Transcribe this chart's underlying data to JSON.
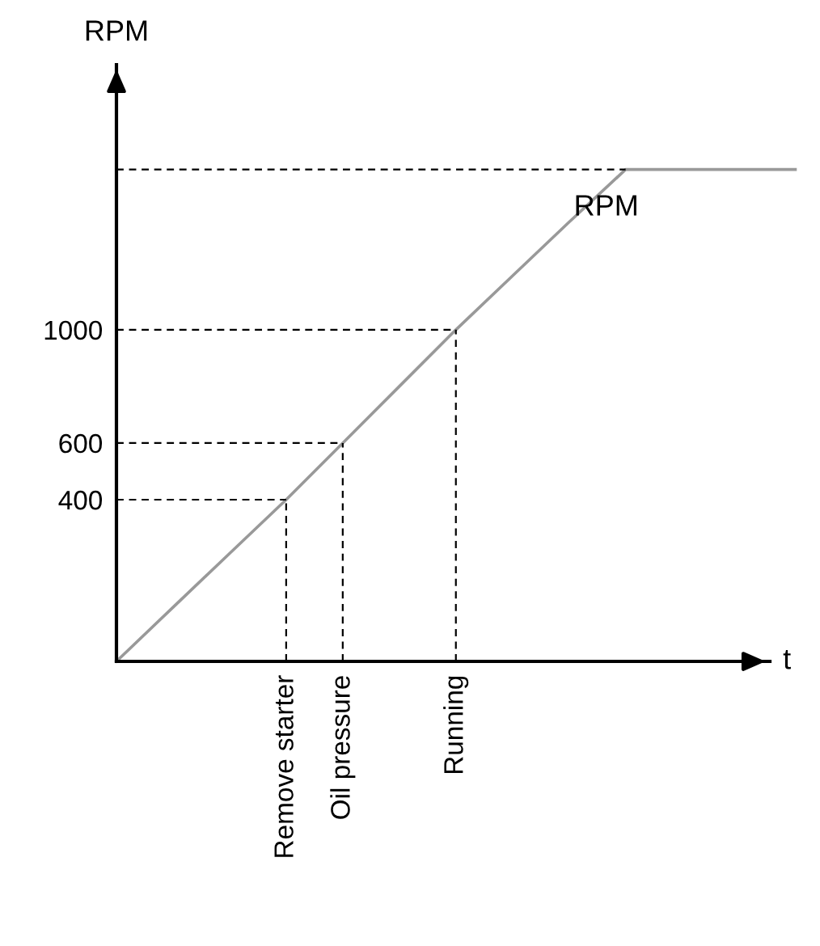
{
  "chart_data": {
    "type": "line",
    "xlabel": "t",
    "ylabel": "RPM",
    "categories": [
      null,
      null,
      null,
      "Remove starter",
      "Oil pressure",
      null,
      "Running",
      null,
      null,
      null,
      null,
      null,
      null
    ],
    "series": [
      {
        "color": "#999999",
        "values": [
          -171,
          20,
          210,
          400,
          600,
          800,
          1000,
          1190,
          1380,
          1566,
          1566,
          1566,
          1566
        ]
      }
    ],
    "ylim": [
      -171,
      1936
    ],
    "yticks": [
      400,
      600,
      1000
    ],
    "ref_lines": [
      {
        "axis": "y",
        "value": 400,
        "label": null,
        "line_style": "dashed"
      },
      {
        "axis": "y",
        "value": 600,
        "label": null,
        "line_style": "dashed"
      },
      {
        "axis": "y",
        "value": 1000,
        "label": null,
        "line_style": "dashed"
      },
      {
        "axis": "y",
        "value": 1566,
        "label": null,
        "line_style": "dashed"
      },
      {
        "axis": "x",
        "value": "Remove starter",
        "label": null,
        "line_style": "dashed"
      },
      {
        "axis": "x",
        "value": "Oil pressure",
        "label": null,
        "line_style": "dashed"
      },
      {
        "axis": "x",
        "value": "Running",
        "label": null,
        "line_style": "dashed"
      }
    ],
    "annotations": [
      "RPM"
    ],
    "grid": false,
    "legend": false,
    "marker": "none",
    "line_style": "solid"
  }
}
